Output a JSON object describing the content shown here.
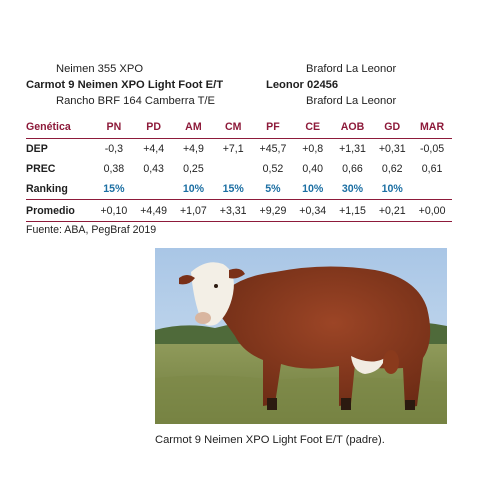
{
  "pedigree": {
    "sire_top": "Neimen 355 XPO",
    "sire": "Carmot 9 Neimen XPO Light Foot E/T",
    "sire_bottom": "Rancho BRF 164 Camberra T/E",
    "dam_top": "Braford La Leonor",
    "dam": "Leonor 02456",
    "dam_bottom": "Braford La Leonor"
  },
  "table": {
    "header": [
      "Genética",
      "PN",
      "PD",
      "AM",
      "CM",
      "PF",
      "CE",
      "AOB",
      "GD",
      "MAR"
    ],
    "rows": [
      {
        "label": "DEP",
        "values": [
          "-0,3",
          "+4,4",
          "+4,9",
          "+7,1",
          "+45,7",
          "+0,8",
          "+1,31",
          "+0,31",
          "-0,05"
        ]
      },
      {
        "label": "PREC",
        "values": [
          "0,38",
          "0,43",
          "0,25",
          "",
          "0,52",
          "0,40",
          "0,66",
          "0,62",
          "0,61"
        ]
      },
      {
        "label": "Ranking",
        "values": [
          "15%",
          "",
          "10%",
          "15%",
          "5%",
          "10%",
          "30%",
          "10%",
          ""
        ]
      }
    ],
    "average": {
      "label": "Promedio",
      "values": [
        "+0,10",
        "+4,49",
        "+1,07",
        "+3,31",
        "+9,29",
        "+0,34",
        "+1,15",
        "+0,21",
        "+0,00"
      ]
    }
  },
  "source": "Fuente: ABA, PegBraf 2019",
  "photo": {
    "caption": "Carmot 9 Neimen XPO Light Foot E/T (padre)."
  },
  "colors": {
    "accent": "#8d1a3a",
    "ranking": "#1c6fa3"
  }
}
